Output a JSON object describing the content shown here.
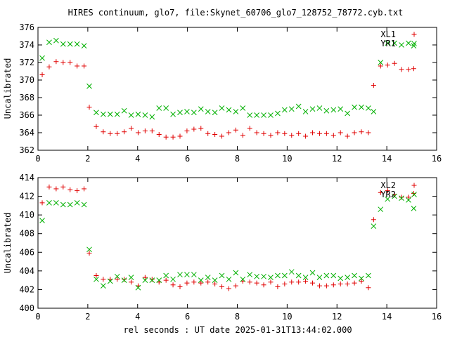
{
  "chart_data": [
    {
      "type": "scatter",
      "title": "HIRES continuum, glo7, file:Skynet_60706_glo7_128752_78772.cyb.txt",
      "xlabel": "",
      "ylabel": "Uncalibrated",
      "xlim": [
        0,
        16
      ],
      "ylim": [
        362,
        376
      ],
      "xticks": [
        0,
        2,
        4,
        6,
        8,
        10,
        12,
        14,
        16
      ],
      "yticks": [
        362,
        364,
        366,
        368,
        370,
        372,
        374,
        376
      ],
      "legend_position": "top-right",
      "series": [
        {
          "name": "XL1",
          "color": "#e00000",
          "marker": "plus",
          "x": [
            0.17,
            0.45,
            0.73,
            1.01,
            1.29,
            1.57,
            1.85,
            2.06,
            2.34,
            2.62,
            2.9,
            3.18,
            3.46,
            3.74,
            4.02,
            4.3,
            4.58,
            4.86,
            5.14,
            5.42,
            5.7,
            5.98,
            6.26,
            6.54,
            6.82,
            7.1,
            7.38,
            7.66,
            7.94,
            8.22,
            8.5,
            8.78,
            9.06,
            9.34,
            9.62,
            9.9,
            10.18,
            10.46,
            10.74,
            11.02,
            11.3,
            11.58,
            11.86,
            12.14,
            12.42,
            12.7,
            12.98,
            13.26,
            13.47,
            13.75,
            14.03,
            14.31,
            14.59,
            14.87,
            15.08
          ],
          "y": [
            370.6,
            371.5,
            372.1,
            372.0,
            372.0,
            371.6,
            371.6,
            366.9,
            364.7,
            364.1,
            363.9,
            363.9,
            364.1,
            364.5,
            364.0,
            364.2,
            364.2,
            363.8,
            363.5,
            363.5,
            363.6,
            364.2,
            364.4,
            364.5,
            363.9,
            363.8,
            363.6,
            364.0,
            364.3,
            363.7,
            364.5,
            364.0,
            363.9,
            363.7,
            364.0,
            363.9,
            363.7,
            363.9,
            363.6,
            364.0,
            363.9,
            363.9,
            363.7,
            364.0,
            363.6,
            364.0,
            364.1,
            364.0,
            369.4,
            371.6,
            371.7,
            371.9,
            371.2,
            371.2,
            371.3
          ]
        },
        {
          "name": "YR1",
          "color": "#00b000",
          "marker": "cross",
          "x": [
            0.17,
            0.45,
            0.73,
            1.01,
            1.29,
            1.57,
            1.85,
            2.06,
            2.34,
            2.62,
            2.9,
            3.18,
            3.46,
            3.74,
            4.02,
            4.3,
            4.58,
            4.86,
            5.14,
            5.42,
            5.7,
            5.98,
            6.26,
            6.54,
            6.82,
            7.1,
            7.38,
            7.66,
            7.94,
            8.22,
            8.5,
            8.78,
            9.06,
            9.34,
            9.62,
            9.9,
            10.18,
            10.46,
            10.74,
            11.02,
            11.3,
            11.58,
            11.86,
            12.14,
            12.42,
            12.7,
            12.98,
            13.26,
            13.47,
            13.75,
            14.03,
            14.31,
            14.59,
            14.87,
            15.08
          ],
          "y": [
            372.5,
            374.3,
            374.5,
            374.1,
            374.1,
            374.1,
            373.9,
            369.3,
            366.3,
            366.1,
            366.1,
            366.1,
            366.5,
            366.0,
            366.1,
            366.0,
            365.8,
            366.8,
            366.8,
            366.1,
            366.3,
            366.4,
            366.3,
            366.7,
            366.4,
            366.3,
            366.8,
            366.6,
            366.4,
            366.8,
            366.0,
            366.0,
            366.0,
            366.0,
            366.2,
            366.6,
            366.7,
            367.0,
            366.4,
            366.7,
            366.8,
            366.5,
            366.6,
            366.7,
            366.2,
            366.9,
            366.9,
            366.8,
            366.4,
            372.0,
            374.2,
            374.2,
            374.0,
            374.2,
            373.9
          ]
        }
      ]
    },
    {
      "type": "scatter",
      "title": "",
      "xlabel": "rel seconds : UT date 2025-01-31T13:44:02.000",
      "ylabel": "Uncalibrated",
      "xlim": [
        0,
        16
      ],
      "ylim": [
        400,
        414
      ],
      "xticks": [
        0,
        2,
        4,
        6,
        8,
        10,
        12,
        14,
        16
      ],
      "yticks": [
        400,
        402,
        404,
        406,
        408,
        410,
        412,
        414
      ],
      "legend_position": "top-right",
      "series": [
        {
          "name": "XL2",
          "color": "#e00000",
          "marker": "plus",
          "x": [
            0.17,
            0.45,
            0.73,
            1.01,
            1.29,
            1.57,
            1.85,
            2.06,
            2.34,
            2.62,
            2.9,
            3.18,
            3.46,
            3.74,
            4.02,
            4.3,
            4.58,
            4.86,
            5.14,
            5.42,
            5.7,
            5.98,
            6.26,
            6.54,
            6.82,
            7.1,
            7.38,
            7.66,
            7.94,
            8.22,
            8.5,
            8.78,
            9.06,
            9.34,
            9.62,
            9.9,
            10.18,
            10.46,
            10.74,
            11.02,
            11.3,
            11.58,
            11.86,
            12.14,
            12.42,
            12.7,
            12.98,
            13.26,
            13.47,
            13.75,
            14.03,
            14.31,
            14.59,
            14.87,
            15.08
          ],
          "y": [
            411.3,
            413.0,
            412.8,
            413.0,
            412.7,
            412.6,
            412.8,
            405.9,
            403.5,
            403.1,
            403.1,
            403.1,
            403.1,
            402.8,
            402.4,
            403.3,
            403.1,
            402.8,
            403.0,
            402.5,
            402.3,
            402.7,
            402.8,
            402.7,
            402.8,
            402.6,
            402.3,
            402.1,
            402.4,
            402.9,
            402.8,
            402.7,
            402.5,
            402.8,
            402.3,
            402.6,
            402.8,
            402.8,
            402.9,
            402.7,
            402.4,
            402.4,
            402.5,
            402.6,
            402.6,
            402.7,
            402.9,
            402.2,
            409.5,
            412.4,
            412.6,
            412.2,
            411.9,
            411.9,
            412.3
          ]
        },
        {
          "name": "YR2",
          "color": "#00b000",
          "marker": "cross",
          "x": [
            0.17,
            0.45,
            0.73,
            1.01,
            1.29,
            1.57,
            1.85,
            2.06,
            2.34,
            2.62,
            2.9,
            3.18,
            3.46,
            3.74,
            4.02,
            4.3,
            4.58,
            4.86,
            5.14,
            5.42,
            5.7,
            5.98,
            6.26,
            6.54,
            6.82,
            7.1,
            7.38,
            7.66,
            7.94,
            8.22,
            8.5,
            8.78,
            9.06,
            9.34,
            9.62,
            9.9,
            10.18,
            10.46,
            10.74,
            11.02,
            11.3,
            11.58,
            11.86,
            12.14,
            12.42,
            12.7,
            12.98,
            13.26,
            13.47,
            13.75,
            14.03,
            14.31,
            14.59,
            14.87,
            15.08
          ],
          "y": [
            409.4,
            411.3,
            411.3,
            411.1,
            411.1,
            411.3,
            411.1,
            406.3,
            403.1,
            402.4,
            402.9,
            403.4,
            403.0,
            403.3,
            402.2,
            403.0,
            403.0,
            403.0,
            403.5,
            403.1,
            403.6,
            403.6,
            403.6,
            403.0,
            403.3,
            403.0,
            403.5,
            403.1,
            403.8,
            403.1,
            403.6,
            403.4,
            403.4,
            403.3,
            403.5,
            403.5,
            403.9,
            403.5,
            403.3,
            403.8,
            403.3,
            403.5,
            403.5,
            403.2,
            403.3,
            403.5,
            403.2,
            403.5,
            408.8,
            410.6,
            411.7,
            412.0,
            411.8,
            411.6,
            410.7
          ]
        }
      ]
    }
  ]
}
